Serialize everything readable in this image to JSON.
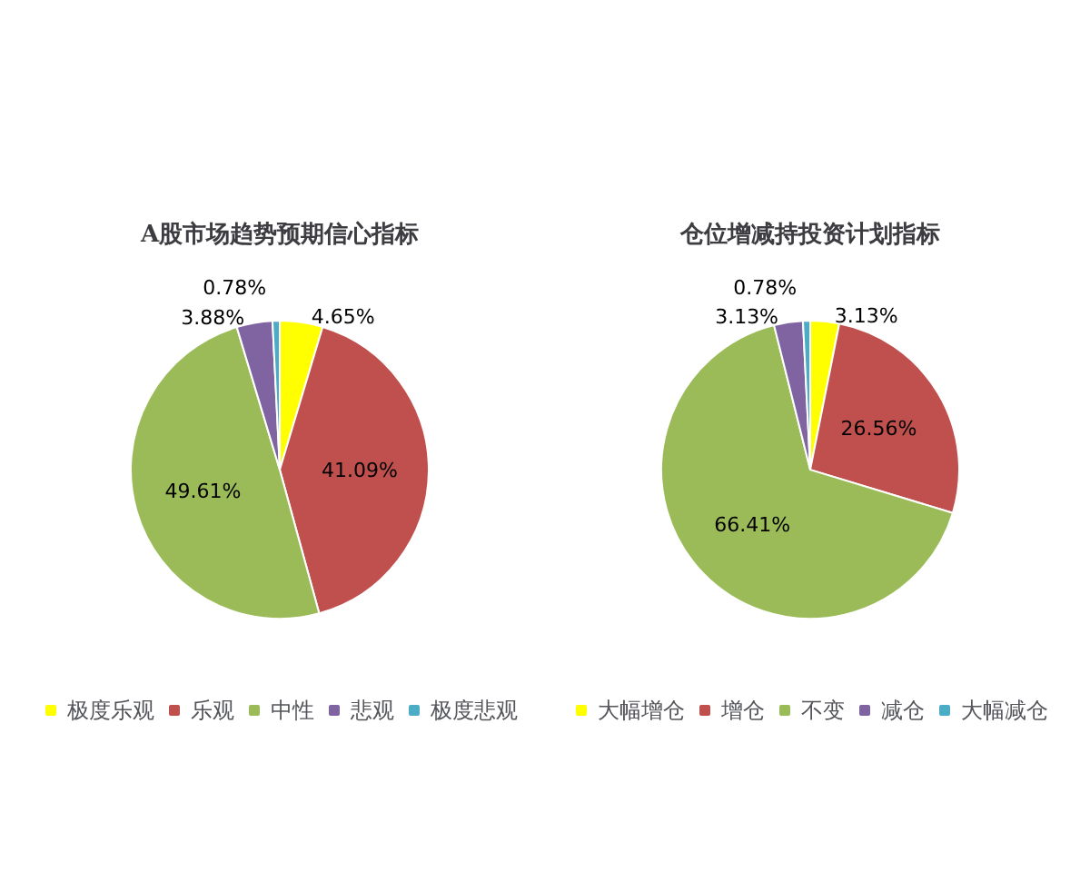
{
  "chart_data": [
    {
      "type": "pie",
      "title": "A股市场趋势预期信心指标",
      "categories": [
        "极度乐观",
        "乐观",
        "中性",
        "悲观",
        "极度悲观"
      ],
      "values": [
        4.65,
        41.09,
        49.61,
        3.88,
        0.78
      ],
      "value_labels": [
        "4.65%",
        "41.09%",
        "49.61%",
        "3.88%",
        "0.78%"
      ],
      "colors": [
        "#ffff00",
        "#c0504d",
        "#9bbb59",
        "#8064a2",
        "#4bacc6"
      ],
      "legend": "bottom"
    },
    {
      "type": "pie",
      "title": "仓位增减持投资计划指标",
      "categories": [
        "大幅增仓",
        "增仓",
        "不变",
        "减仓",
        "大幅减仓"
      ],
      "values": [
        3.13,
        26.56,
        66.41,
        3.13,
        0.78
      ],
      "value_labels": [
        "3.13%",
        "26.56%",
        "66.41%",
        "3.13%",
        "0.78%"
      ],
      "colors": [
        "#ffff00",
        "#c0504d",
        "#9bbb59",
        "#8064a2",
        "#4bacc6"
      ],
      "legend": "bottom"
    }
  ]
}
